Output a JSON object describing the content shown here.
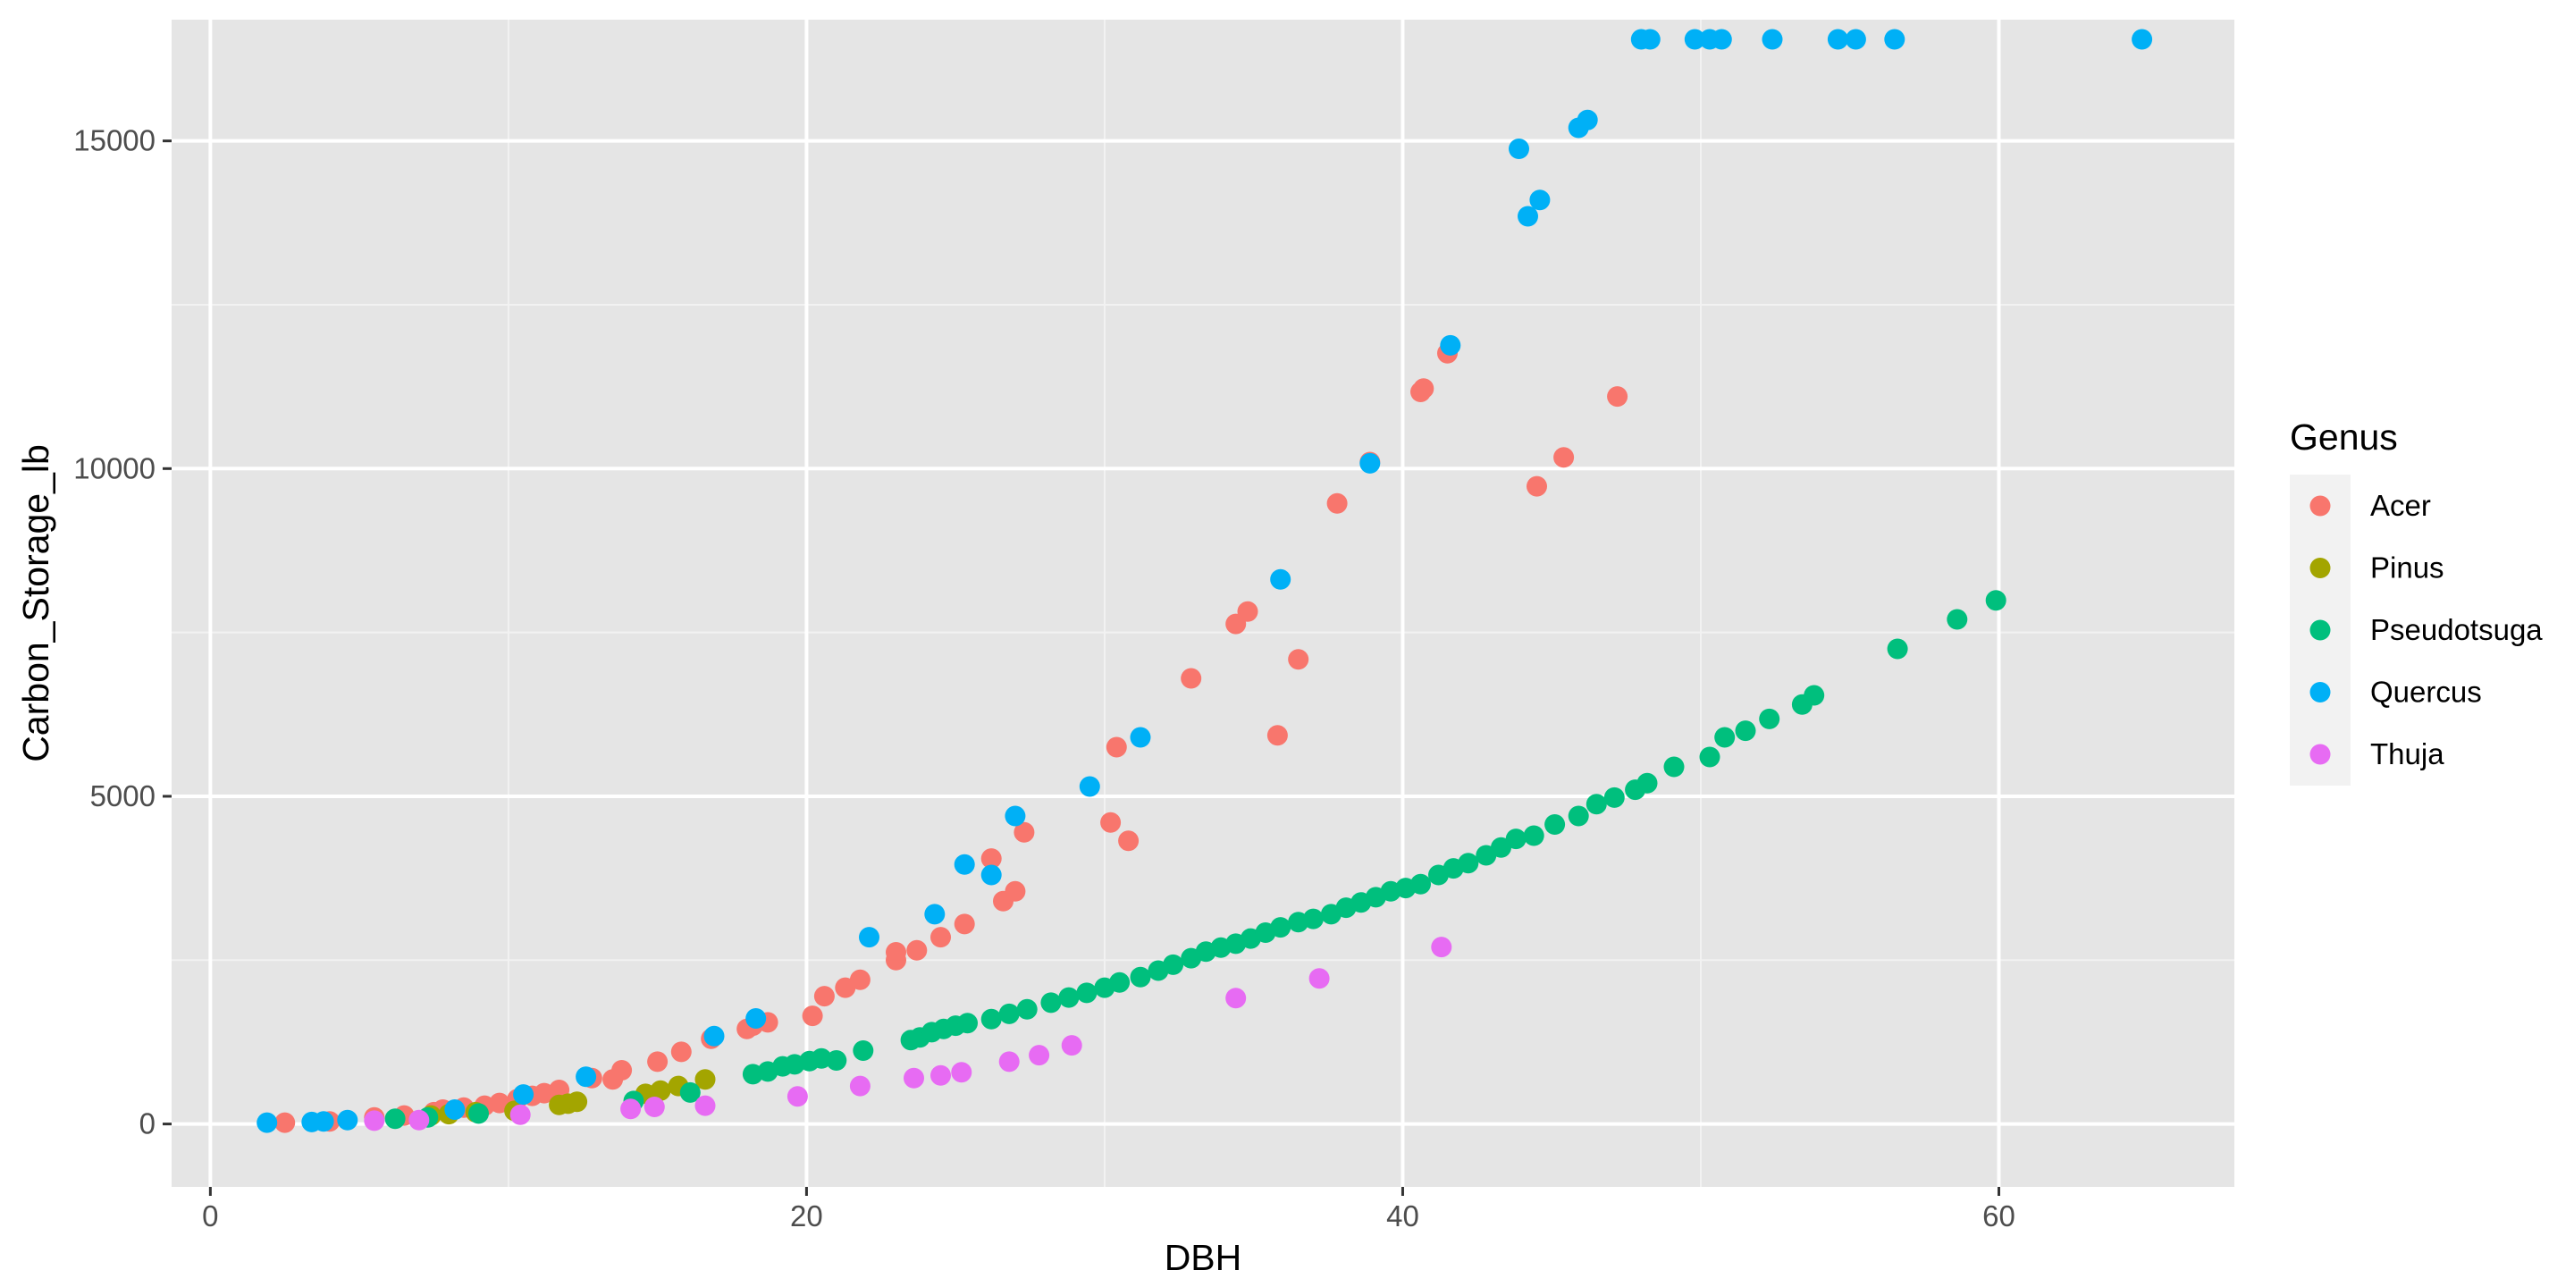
{
  "chart_data": {
    "type": "scatter",
    "title": "",
    "xlabel": "DBH",
    "ylabel": "Carbon_Storage_lb",
    "xlim": [
      -1.3,
      67.9
    ],
    "ylim": [
      -960,
      16850
    ],
    "x_ticks": [
      0,
      20,
      40,
      60
    ],
    "y_ticks": [
      0,
      5000,
      10000,
      15000
    ],
    "x_tick_labels": [
      "0",
      "20",
      "40",
      "60"
    ],
    "y_tick_labels": [
      "0",
      "5000",
      "10000",
      "15000"
    ],
    "grid": true,
    "panel_background": "#e5e5e5",
    "legend": {
      "title": "Genus",
      "position": "right"
    },
    "series": [
      {
        "name": "Acer",
        "color": "#f8766d",
        "points": [
          [
            2.5,
            20
          ],
          [
            4,
            40
          ],
          [
            5.5,
            100
          ],
          [
            6.5,
            130
          ],
          [
            7.5,
            180
          ],
          [
            7.8,
            220
          ],
          [
            8.5,
            250
          ],
          [
            9.2,
            280
          ],
          [
            9.7,
            320
          ],
          [
            10.3,
            380
          ],
          [
            10.8,
            430
          ],
          [
            11.2,
            470
          ],
          [
            11.7,
            520
          ],
          [
            12.8,
            700
          ],
          [
            13.5,
            680
          ],
          [
            13.8,
            820
          ],
          [
            15,
            950
          ],
          [
            15.8,
            1100
          ],
          [
            16.8,
            1300
          ],
          [
            18,
            1450
          ],
          [
            18.2,
            1500
          ],
          [
            18.7,
            1550
          ],
          [
            20.2,
            1650
          ],
          [
            20.6,
            1950
          ],
          [
            21.3,
            2080
          ],
          [
            21.8,
            2200
          ],
          [
            23,
            2500
          ],
          [
            23,
            2620
          ],
          [
            23.7,
            2650
          ],
          [
            24.5,
            2850
          ],
          [
            25.3,
            3050
          ],
          [
            26.6,
            3400
          ],
          [
            27,
            3550
          ],
          [
            26.2,
            4050
          ],
          [
            27.3,
            4450
          ],
          [
            30.2,
            4600
          ],
          [
            30.8,
            4320
          ],
          [
            30.4,
            5750
          ],
          [
            32.9,
            6800
          ],
          [
            35.8,
            5930
          ],
          [
            34.4,
            7630
          ],
          [
            34.8,
            7820
          ],
          [
            36.5,
            7090
          ],
          [
            37.8,
            9470
          ],
          [
            38.9,
            10100
          ],
          [
            40.6,
            11170
          ],
          [
            40.7,
            11220
          ],
          [
            41.5,
            11760
          ],
          [
            44.5,
            9730
          ],
          [
            45.4,
            10170
          ],
          [
            47.2,
            11100
          ]
        ]
      },
      {
        "name": "Pinus",
        "color": "#a3a500",
        "points": [
          [
            7.4,
            130
          ],
          [
            8,
            150
          ],
          [
            8.9,
            180
          ],
          [
            10.2,
            200
          ],
          [
            11.7,
            290
          ],
          [
            12,
            310
          ],
          [
            12.3,
            340
          ],
          [
            14.6,
            460
          ],
          [
            15.1,
            510
          ],
          [
            15.7,
            580
          ],
          [
            16.6,
            680
          ]
        ]
      },
      {
        "name": "Pseudotsuga",
        "color": "#00bf7d",
        "points": [
          [
            6.2,
            80
          ],
          [
            7.3,
            100
          ],
          [
            9,
            160
          ],
          [
            14.2,
            350
          ],
          [
            16.1,
            480
          ],
          [
            18.2,
            760
          ],
          [
            18.7,
            800
          ],
          [
            19.2,
            880
          ],
          [
            19.6,
            910
          ],
          [
            20.1,
            960
          ],
          [
            20.5,
            1000
          ],
          [
            21,
            970
          ],
          [
            21.9,
            1120
          ],
          [
            23.5,
            1280
          ],
          [
            23.8,
            1320
          ],
          [
            24.2,
            1400
          ],
          [
            24.6,
            1450
          ],
          [
            25,
            1500
          ],
          [
            25.4,
            1540
          ],
          [
            26.2,
            1600
          ],
          [
            26.8,
            1680
          ],
          [
            27.4,
            1750
          ],
          [
            28.2,
            1850
          ],
          [
            28.8,
            1930
          ],
          [
            29.4,
            2000
          ],
          [
            30,
            2080
          ],
          [
            30.5,
            2160
          ],
          [
            31.2,
            2240
          ],
          [
            31.8,
            2340
          ],
          [
            32.3,
            2430
          ],
          [
            32.9,
            2530
          ],
          [
            33.4,
            2630
          ],
          [
            33.9,
            2690
          ],
          [
            34.4,
            2750
          ],
          [
            34.9,
            2830
          ],
          [
            35.4,
            2920
          ],
          [
            35.9,
            3000
          ],
          [
            36.5,
            3080
          ],
          [
            37,
            3130
          ],
          [
            37.6,
            3200
          ],
          [
            38.1,
            3300
          ],
          [
            38.6,
            3380
          ],
          [
            39.1,
            3460
          ],
          [
            39.6,
            3550
          ],
          [
            40.1,
            3600
          ],
          [
            40.6,
            3660
          ],
          [
            41.2,
            3800
          ],
          [
            41.7,
            3900
          ],
          [
            42.2,
            3980
          ],
          [
            42.8,
            4100
          ],
          [
            43.3,
            4220
          ],
          [
            43.8,
            4350
          ],
          [
            44.4,
            4400
          ],
          [
            45.1,
            4570
          ],
          [
            45.9,
            4700
          ],
          [
            46.5,
            4880
          ],
          [
            47.1,
            4980
          ],
          [
            47.8,
            5100
          ],
          [
            48.2,
            5200
          ],
          [
            49.1,
            5450
          ],
          [
            50.3,
            5600
          ],
          [
            50.8,
            5900
          ],
          [
            51.5,
            6000
          ],
          [
            52.3,
            6180
          ],
          [
            53.4,
            6400
          ],
          [
            53.8,
            6540
          ],
          [
            56.6,
            7250
          ],
          [
            58.6,
            7700
          ],
          [
            59.9,
            7990
          ]
        ]
      },
      {
        "name": "Quercus",
        "color": "#00b0f6",
        "points": [
          [
            1.9,
            20
          ],
          [
            3.4,
            30
          ],
          [
            3.8,
            40
          ],
          [
            4.6,
            60
          ],
          [
            8.2,
            220
          ],
          [
            10.5,
            450
          ],
          [
            12.6,
            720
          ],
          [
            16.9,
            1340
          ],
          [
            18.3,
            1610
          ],
          [
            22.1,
            2850
          ],
          [
            24.3,
            3200
          ],
          [
            25.3,
            3960
          ],
          [
            26.2,
            3800
          ],
          [
            27,
            4700
          ],
          [
            29.5,
            5150
          ],
          [
            31.2,
            5900
          ],
          [
            35.9,
            8310
          ],
          [
            38.9,
            10080
          ],
          [
            41.6,
            11880
          ],
          [
            43.9,
            14880
          ],
          [
            44.2,
            13850
          ],
          [
            44.6,
            14100
          ],
          [
            45.9,
            15200
          ],
          [
            46.2,
            15320
          ],
          [
            48,
            16550
          ],
          [
            48.3,
            16550
          ],
          [
            49.8,
            16550
          ],
          [
            50.3,
            16550
          ],
          [
            50.7,
            16550
          ],
          [
            52.4,
            16550
          ],
          [
            54.6,
            16550
          ],
          [
            55.2,
            16550
          ],
          [
            56.5,
            16550
          ],
          [
            64.8,
            16550
          ]
        ]
      },
      {
        "name": "Thuja",
        "color": "#e76bf3",
        "points": [
          [
            5.5,
            50
          ],
          [
            7,
            60
          ],
          [
            10.4,
            140
          ],
          [
            14.1,
            230
          ],
          [
            14.9,
            260
          ],
          [
            16.6,
            280
          ],
          [
            19.7,
            420
          ],
          [
            21.8,
            580
          ],
          [
            23.6,
            700
          ],
          [
            24.5,
            740
          ],
          [
            25.2,
            790
          ],
          [
            26.8,
            950
          ],
          [
            27.8,
            1050
          ],
          [
            28.9,
            1200
          ],
          [
            34.4,
            1920
          ],
          [
            37.2,
            2220
          ],
          [
            41.3,
            2700
          ]
        ]
      }
    ]
  }
}
